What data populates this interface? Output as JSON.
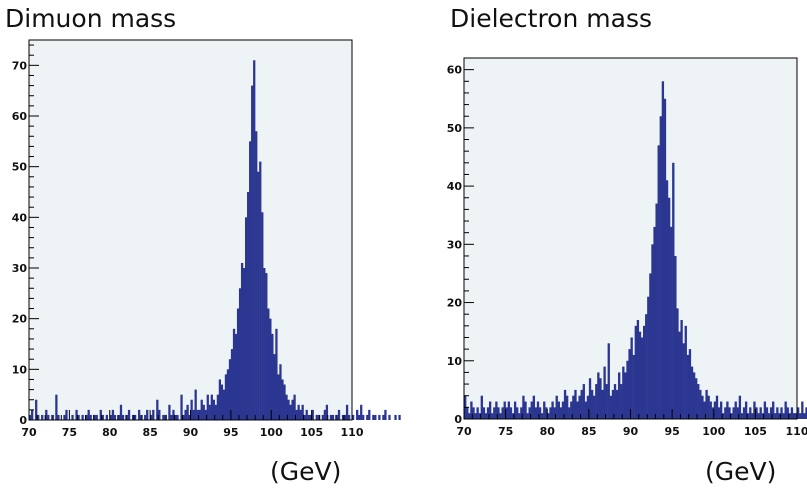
{
  "chart_data": [
    {
      "type": "bar",
      "title": "Dimuon mass",
      "unit_label": "(GeV)",
      "xlim": [
        70,
        110
      ],
      "ylim": [
        0,
        75
      ],
      "bin_width": 0.25,
      "x_ticks": [
        70,
        75,
        80,
        85,
        90,
        95,
        100,
        105,
        110
      ],
      "y_ticks": [
        0,
        10,
        20,
        30,
        40,
        50,
        60,
        70
      ],
      "grid": false,
      "colors": {
        "bar": "#2b3691",
        "frame_bg": "#eef3f5"
      },
      "values": [
        1,
        2,
        0,
        4,
        1,
        0,
        1,
        0,
        2,
        1,
        0,
        1,
        0,
        5,
        1,
        0,
        0,
        1,
        2,
        0,
        0,
        1,
        0,
        2,
        1,
        0,
        1,
        0,
        1,
        2,
        1,
        0,
        1,
        1,
        0,
        2,
        1,
        0,
        1,
        0,
        1,
        2,
        1,
        0,
        1,
        3,
        1,
        0,
        1,
        2,
        0,
        1,
        1,
        0,
        2,
        1,
        0,
        1,
        2,
        0,
        1,
        2,
        0,
        4,
        2,
        0,
        1,
        1,
        0,
        3,
        1,
        2,
        1,
        1,
        0,
        5,
        1,
        2,
        3,
        1,
        4,
        2,
        6,
        2,
        2,
        4,
        3,
        2,
        5,
        3,
        5,
        4,
        3,
        5,
        8,
        7,
        6,
        9,
        10,
        12,
        14,
        18,
        17,
        22,
        26,
        31,
        30,
        40,
        45,
        55,
        66,
        71,
        57,
        49,
        51,
        41,
        30,
        29,
        22,
        20,
        17,
        13,
        18,
        9,
        11,
        8,
        7,
        5,
        4,
        3,
        4,
        5,
        2,
        3,
        2,
        3,
        1,
        2,
        1,
        1,
        2,
        0,
        1,
        1,
        0,
        1,
        2,
        3,
        0,
        1,
        1,
        0,
        1,
        2,
        0,
        1,
        1,
        3,
        1,
        0,
        1,
        0,
        2,
        1,
        3,
        1,
        0,
        1,
        2,
        0,
        1,
        1,
        0,
        1,
        0,
        1,
        2,
        0,
        1,
        0,
        0,
        1,
        0,
        1,
        0
      ]
    },
    {
      "type": "bar",
      "title": "Dielectron mass",
      "unit_label": "(GeV)",
      "xlim": [
        70,
        110
      ],
      "ylim": [
        0,
        62
      ],
      "bin_width": 0.25,
      "x_ticks": [
        70,
        75,
        80,
        85,
        90,
        95,
        100,
        105,
        110
      ],
      "y_ticks": [
        0,
        10,
        20,
        30,
        40,
        50,
        60
      ],
      "grid": false,
      "colors": {
        "bar": "#2b3691",
        "frame_bg": "#eef3f5"
      },
      "values": [
        4,
        2,
        1,
        3,
        2,
        1,
        2,
        1,
        4,
        2,
        1,
        2,
        3,
        1,
        2,
        3,
        2,
        1,
        2,
        3,
        2,
        3,
        2,
        1,
        3,
        2,
        1,
        2,
        4,
        3,
        1,
        2,
        3,
        4,
        2,
        3,
        2,
        1,
        3,
        2,
        1,
        2,
        3,
        2,
        4,
        3,
        2,
        3,
        5,
        4,
        2,
        3,
        4,
        5,
        3,
        4,
        5,
        6,
        3,
        4,
        7,
        5,
        4,
        6,
        8,
        7,
        5,
        9,
        6,
        13,
        4,
        5,
        6,
        5,
        8,
        6,
        9,
        8,
        10,
        12,
        14,
        11,
        16,
        17,
        15,
        14,
        16,
        18,
        21,
        25,
        30,
        33,
        37,
        47,
        52,
        58,
        55,
        41,
        38,
        33,
        44,
        28,
        19,
        15,
        17,
        13,
        16,
        11,
        12,
        9,
        8,
        7,
        6,
        5,
        4,
        3,
        5,
        4,
        3,
        2,
        3,
        4,
        2,
        3,
        1,
        2,
        3,
        2,
        1,
        2,
        3,
        2,
        4,
        1,
        2,
        3,
        1,
        2,
        1,
        3,
        2,
        1,
        2,
        1,
        3,
        2,
        1,
        2,
        3,
        1,
        2,
        1,
        2,
        1,
        3,
        2,
        1,
        2,
        1,
        1,
        2,
        1,
        3,
        1,
        2,
        1,
        2,
        1,
        1,
        2,
        1,
        3,
        1,
        2,
        1,
        1,
        2,
        1,
        1,
        1
      ]
    }
  ]
}
